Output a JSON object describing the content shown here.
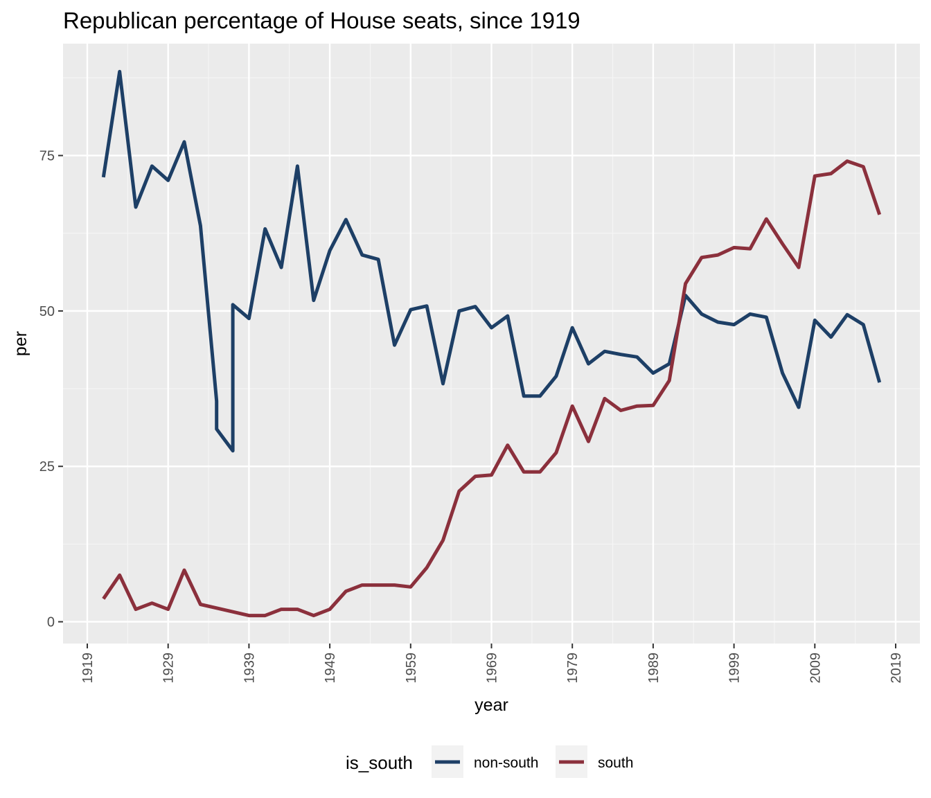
{
  "chart_data": {
    "type": "line",
    "title": "Republican percentage of House seats, since 1919",
    "xlabel": "year",
    "ylabel": "per",
    "xlim": [
      1916,
      2022
    ],
    "ylim": [
      -3.5,
      93
    ],
    "x_ticks": [
      1919,
      1929,
      1939,
      1949,
      1959,
      1969,
      1979,
      1989,
      1999,
      2009,
      2019
    ],
    "y_ticks": [
      0,
      25,
      50,
      75
    ],
    "grid": true,
    "legend": {
      "title": "is_south",
      "position": "bottom",
      "entries": [
        "non-south",
        "south"
      ]
    },
    "series": [
      {
        "name": "non-south",
        "color": "#1d3f66",
        "x": [
          1921,
          1923,
          1925,
          1927,
          1929,
          1931,
          1933,
          1935,
          1935,
          1937,
          1937,
          1939,
          1941,
          1943,
          1945,
          1947,
          1949,
          1951,
          1953,
          1955,
          1957,
          1959,
          1961,
          1963,
          1965,
          1967,
          1969,
          1971,
          1973,
          1975,
          1977,
          1979,
          1981,
          1983,
          1985,
          1987,
          1989,
          1991,
          1993,
          1995,
          1997,
          1999,
          2001,
          2003,
          2005,
          2007,
          2009,
          2011,
          2013,
          2015,
          2017
        ],
        "y": [
          71.5,
          88.5,
          66.7,
          73.3,
          71.0,
          77.2,
          63.7,
          35.5,
          31.0,
          27.5,
          51.0,
          48.8,
          63.2,
          57.0,
          73.3,
          51.7,
          59.7,
          64.7,
          59.0,
          58.3,
          44.5,
          50.2,
          50.8,
          38.3,
          50.0,
          50.7,
          47.3,
          49.2,
          36.3,
          36.3,
          39.5,
          47.3,
          41.5,
          43.5,
          43.0,
          42.6,
          40.0,
          41.5,
          52.5,
          49.5,
          48.2,
          47.8,
          49.5,
          49.0,
          40.0,
          34.5,
          48.5,
          45.8,
          49.4,
          47.8,
          38.5
        ]
      },
      {
        "name": "south",
        "color": "#8b303c",
        "x": [
          1921,
          1923,
          1925,
          1927,
          1929,
          1931,
          1933,
          1935,
          1937,
          1939,
          1941,
          1943,
          1945,
          1947,
          1949,
          1951,
          1953,
          1955,
          1957,
          1959,
          1961,
          1963,
          1965,
          1967,
          1969,
          1971,
          1973,
          1975,
          1977,
          1979,
          1981,
          1983,
          1985,
          1987,
          1989,
          1991,
          1993,
          1995,
          1997,
          1999,
          2001,
          2003,
          2005,
          2007,
          2009,
          2011,
          2013,
          2015,
          2017
        ],
        "y": [
          3.7,
          7.5,
          2.0,
          3.0,
          2.0,
          8.3,
          2.8,
          2.2,
          1.6,
          1.0,
          1.0,
          2.0,
          2.0,
          1.0,
          2.0,
          4.9,
          5.9,
          5.9,
          5.9,
          5.6,
          8.7,
          13.1,
          21.0,
          23.4,
          23.6,
          28.4,
          24.1,
          24.1,
          27.2,
          34.7,
          29.0,
          35.9,
          34.0,
          34.7,
          34.8,
          38.8,
          54.4,
          58.6,
          59.0,
          60.2,
          60.0,
          64.8,
          60.8,
          57.0,
          71.7,
          72.1,
          74.1,
          73.2,
          65.5
        ]
      }
    ]
  }
}
